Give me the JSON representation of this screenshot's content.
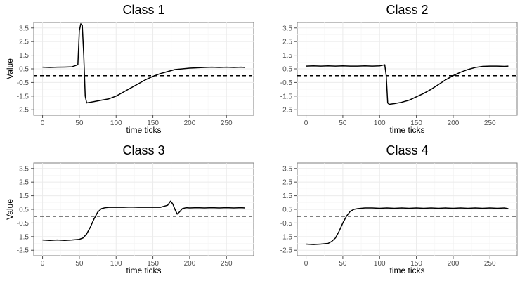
{
  "chart_data": [
    {
      "type": "line",
      "title": "Class 1",
      "xlabel": "time ticks",
      "ylabel": "Value",
      "xlim": [
        -12,
        287
      ],
      "ylim": [
        -2.9,
        3.9
      ],
      "x_ticks": [
        0,
        50,
        100,
        150,
        200,
        250
      ],
      "y_ticks": [
        3.5,
        2.5,
        1.5,
        0.5,
        -0.5,
        -1.5,
        -2.5
      ],
      "reference_line": {
        "y": 0,
        "style": "dashed"
      },
      "grid": true,
      "series": [
        {
          "x": [
            0,
            10,
            20,
            30,
            40,
            48,
            50,
            52,
            54,
            56,
            58,
            60,
            65,
            70,
            80,
            90,
            100,
            110,
            120,
            130,
            140,
            150,
            160,
            170,
            180,
            190,
            200,
            210,
            220,
            230,
            240,
            250,
            260,
            270,
            275
          ],
          "y": [
            0.62,
            0.6,
            0.62,
            0.63,
            0.65,
            0.8,
            3.3,
            3.8,
            3.7,
            1.5,
            -1.5,
            -2.0,
            -1.95,
            -1.9,
            -1.8,
            -1.7,
            -1.5,
            -1.2,
            -0.9,
            -0.6,
            -0.3,
            -0.05,
            0.15,
            0.3,
            0.45,
            0.5,
            0.55,
            0.58,
            0.6,
            0.62,
            0.6,
            0.62,
            0.6,
            0.62,
            0.6
          ]
        }
      ]
    },
    {
      "type": "line",
      "title": "Class 2",
      "xlabel": "time ticks",
      "ylabel": "",
      "xlim": [
        -12,
        287
      ],
      "ylim": [
        -2.9,
        3.9
      ],
      "x_ticks": [
        0,
        50,
        100,
        150,
        200,
        250
      ],
      "y_ticks": [
        3.5,
        2.5,
        1.5,
        0.5,
        -0.5,
        -1.5,
        -2.5
      ],
      "reference_line": {
        "y": 0,
        "style": "dashed"
      },
      "grid": true,
      "series": [
        {
          "x": [
            0,
            10,
            20,
            30,
            40,
            50,
            60,
            70,
            80,
            90,
            100,
            107,
            109,
            111,
            113,
            120,
            130,
            140,
            150,
            160,
            170,
            180,
            190,
            200,
            210,
            220,
            230,
            240,
            250,
            260,
            270,
            275
          ],
          "y": [
            0.7,
            0.72,
            0.7,
            0.72,
            0.7,
            0.72,
            0.7,
            0.7,
            0.72,
            0.7,
            0.72,
            0.8,
            0.0,
            -2.0,
            -2.1,
            -2.05,
            -1.95,
            -1.8,
            -1.55,
            -1.3,
            -1.0,
            -0.65,
            -0.3,
            0.0,
            0.25,
            0.45,
            0.6,
            0.68,
            0.7,
            0.7,
            0.68,
            0.7
          ]
        }
      ]
    },
    {
      "type": "line",
      "title": "Class 3",
      "xlabel": "time ticks",
      "ylabel": "Value",
      "xlim": [
        -12,
        287
      ],
      "ylim": [
        -2.9,
        3.9
      ],
      "x_ticks": [
        0,
        50,
        100,
        150,
        200,
        250
      ],
      "y_ticks": [
        3.5,
        2.5,
        1.5,
        0.5,
        -0.5,
        -1.5,
        -2.5
      ],
      "reference_line": {
        "y": 0,
        "style": "dashed"
      },
      "grid": true,
      "series": [
        {
          "x": [
            0,
            10,
            20,
            30,
            40,
            50,
            55,
            60,
            65,
            70,
            75,
            80,
            85,
            90,
            100,
            110,
            120,
            130,
            140,
            150,
            160,
            170,
            174,
            177,
            180,
            183,
            186,
            190,
            195,
            200,
            210,
            220,
            230,
            240,
            250,
            260,
            270,
            275
          ],
          "y": [
            -1.75,
            -1.78,
            -1.75,
            -1.78,
            -1.75,
            -1.7,
            -1.6,
            -1.3,
            -0.8,
            -0.2,
            0.3,
            0.55,
            0.62,
            0.65,
            0.65,
            0.65,
            0.67,
            0.65,
            0.65,
            0.65,
            0.65,
            0.8,
            1.1,
            0.9,
            0.5,
            0.15,
            0.3,
            0.55,
            0.62,
            0.6,
            0.62,
            0.6,
            0.62,
            0.6,
            0.62,
            0.6,
            0.62,
            0.6
          ]
        }
      ]
    },
    {
      "type": "line",
      "title": "Class 4",
      "xlabel": "time ticks",
      "ylabel": "",
      "xlim": [
        -12,
        287
      ],
      "ylim": [
        -2.9,
        3.9
      ],
      "x_ticks": [
        0,
        50,
        100,
        150,
        200,
        250
      ],
      "y_ticks": [
        3.5,
        2.5,
        1.5,
        0.5,
        -0.5,
        -1.5,
        -2.5
      ],
      "reference_line": {
        "y": 0,
        "style": "dashed"
      },
      "grid": true,
      "series": [
        {
          "x": [
            0,
            10,
            20,
            30,
            35,
            40,
            45,
            50,
            55,
            60,
            65,
            70,
            75,
            80,
            90,
            100,
            110,
            120,
            130,
            140,
            150,
            160,
            170,
            180,
            190,
            200,
            210,
            220,
            230,
            240,
            250,
            260,
            270,
            275
          ],
          "y": [
            -2.05,
            -2.08,
            -2.05,
            -2.0,
            -1.85,
            -1.6,
            -1.1,
            -0.5,
            0.0,
            0.35,
            0.5,
            0.55,
            0.58,
            0.6,
            0.6,
            0.58,
            0.6,
            0.58,
            0.6,
            0.58,
            0.6,
            0.58,
            0.6,
            0.58,
            0.6,
            0.58,
            0.6,
            0.58,
            0.6,
            0.58,
            0.6,
            0.58,
            0.6,
            0.55
          ]
        }
      ]
    }
  ]
}
